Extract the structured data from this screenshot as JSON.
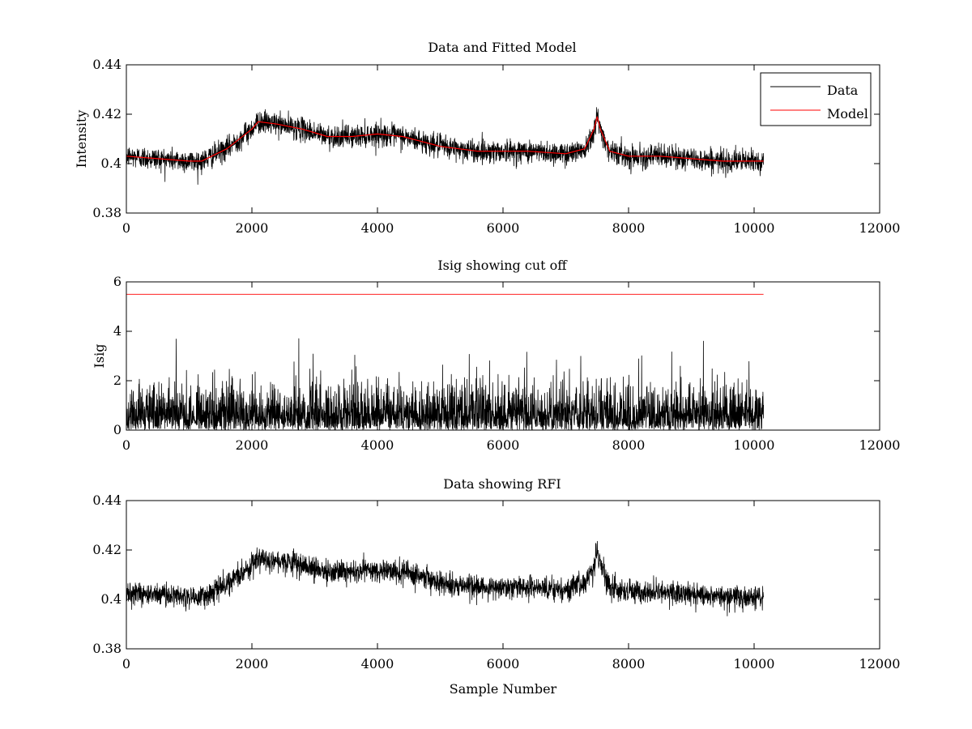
{
  "colors": {
    "data": "#000000",
    "model": "#ff0000",
    "cutoff": "#ff0000",
    "background": "#ffffff"
  },
  "chart_data": [
    {
      "type": "line",
      "title": "Data and Fitted Model",
      "xlabel": "",
      "ylabel": "Intensity",
      "xlim": [
        0,
        12000
      ],
      "ylim": [
        0.38,
        0.44
      ],
      "xticks": [
        0,
        2000,
        4000,
        6000,
        8000,
        10000,
        12000
      ],
      "xtick_labels": [
        "0",
        "2000",
        "4000",
        "6000",
        "8000",
        "10000",
        "12000"
      ],
      "yticks": [
        0.38,
        0.4,
        0.42,
        0.44
      ],
      "ytick_labels": [
        "0.38",
        "0.4",
        "0.42",
        "0.44"
      ],
      "legend": {
        "placement": "top-right",
        "entries": [
          "Data",
          "Model"
        ]
      },
      "series": [
        {
          "name": "Data",
          "color": "#000000",
          "kind": "noisy",
          "x_range": [
            0,
            10150
          ],
          "noise_amplitude": 0.0045,
          "envelope_min": 0.389,
          "envelope_max": 0.427,
          "baseline_x": [
            0,
            500,
            1000,
            1200,
            1600,
            2000,
            2100,
            2400,
            2800,
            3200,
            3600,
            4000,
            4400,
            5000,
            5600,
            6000,
            6400,
            7000,
            7300,
            7450,
            7500,
            7550,
            7700,
            8000,
            8500,
            9000,
            9500,
            10150
          ],
          "baseline_y": [
            0.403,
            0.402,
            0.401,
            0.401,
            0.406,
            0.414,
            0.417,
            0.416,
            0.414,
            0.411,
            0.411,
            0.412,
            0.411,
            0.407,
            0.405,
            0.405,
            0.405,
            0.404,
            0.406,
            0.414,
            0.419,
            0.414,
            0.405,
            0.403,
            0.403,
            0.402,
            0.401,
            0.401
          ]
        },
        {
          "name": "Model",
          "color": "#ff0000",
          "kind": "line",
          "x": [
            0,
            500,
            1000,
            1200,
            1600,
            2000,
            2100,
            2400,
            2800,
            3200,
            3600,
            4000,
            4400,
            5000,
            5600,
            6000,
            6400,
            7000,
            7300,
            7450,
            7500,
            7550,
            7700,
            8000,
            8500,
            9000,
            9500,
            10150
          ],
          "y": [
            0.403,
            0.402,
            0.401,
            0.401,
            0.406,
            0.414,
            0.417,
            0.416,
            0.414,
            0.411,
            0.411,
            0.412,
            0.411,
            0.407,
            0.405,
            0.405,
            0.405,
            0.404,
            0.406,
            0.414,
            0.419,
            0.414,
            0.405,
            0.403,
            0.403,
            0.402,
            0.401,
            0.401
          ]
        }
      ]
    },
    {
      "type": "line",
      "title": "Isig showing cut off",
      "xlabel": "",
      "ylabel": "Isig",
      "xlim": [
        0,
        12000
      ],
      "ylim": [
        0,
        6
      ],
      "xticks": [
        0,
        2000,
        4000,
        6000,
        8000,
        10000,
        12000
      ],
      "xtick_labels": [
        "0",
        "2000",
        "4000",
        "6000",
        "8000",
        "10000",
        "12000"
      ],
      "yticks": [
        0,
        2,
        4,
        6
      ],
      "ytick_labels": [
        "0",
        "2",
        "4",
        "6"
      ],
      "series": [
        {
          "color": "#000000",
          "kind": "abs-noise",
          "x_range": [
            0,
            10150
          ],
          "typical_max": 2.5,
          "peak_max": 3.8
        },
        {
          "color": "#ff0000",
          "kind": "hline",
          "x": [
            0,
            10150
          ],
          "y": [
            5.5,
            5.5
          ]
        }
      ]
    },
    {
      "type": "line",
      "title": "Data showing RFI",
      "xlabel": "Sample Number",
      "ylabel": "",
      "xlim": [
        0,
        12000
      ],
      "ylim": [
        0.38,
        0.44
      ],
      "xticks": [
        0,
        2000,
        4000,
        6000,
        8000,
        10000,
        12000
      ],
      "xtick_labels": [
        "0",
        "2000",
        "4000",
        "6000",
        "8000",
        "10000",
        "12000"
      ],
      "yticks": [
        0.38,
        0.4,
        0.42,
        0.44
      ],
      "ytick_labels": [
        "0.38",
        "0.4",
        "0.42",
        "0.44"
      ],
      "series": [
        {
          "color": "#000000",
          "kind": "noisy",
          "x_range": [
            0,
            10150
          ],
          "noise_amplitude": 0.0045,
          "envelope_min": 0.389,
          "envelope_max": 0.427,
          "baseline_x": [
            0,
            500,
            1000,
            1200,
            1600,
            2000,
            2100,
            2400,
            2800,
            3200,
            3600,
            4000,
            4400,
            5000,
            5600,
            6000,
            6400,
            7000,
            7300,
            7450,
            7500,
            7550,
            7700,
            8000,
            8500,
            9000,
            9500,
            10150
          ],
          "baseline_y": [
            0.403,
            0.402,
            0.401,
            0.401,
            0.406,
            0.414,
            0.417,
            0.416,
            0.414,
            0.411,
            0.411,
            0.412,
            0.411,
            0.407,
            0.405,
            0.405,
            0.405,
            0.404,
            0.406,
            0.414,
            0.419,
            0.414,
            0.405,
            0.403,
            0.403,
            0.402,
            0.401,
            0.401
          ]
        }
      ]
    }
  ]
}
